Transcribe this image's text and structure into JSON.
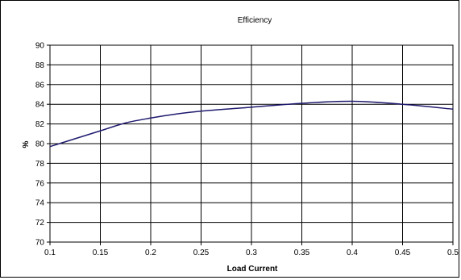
{
  "chart_data": {
    "type": "line",
    "title": "Efficiency",
    "xlabel": "Load Current",
    "ylabel": "%",
    "xlim": [
      0.1,
      0.5
    ],
    "ylim": [
      70,
      90
    ],
    "x_ticks": [
      "0.1",
      "0.15",
      "0.2",
      "0.25",
      "0.3",
      "0.35",
      "0.4",
      "0.45",
      "0.5"
    ],
    "y_ticks": [
      "90",
      "88",
      "86",
      "84",
      "82",
      "80",
      "78",
      "76",
      "74",
      "72",
      "70"
    ],
    "grid": true,
    "legend": "none",
    "line_color": "#1f1a6e",
    "series": [
      {
        "x": [
          0.1,
          0.125,
          0.15,
          0.175,
          0.2,
          0.225,
          0.25,
          0.3,
          0.35,
          0.4,
          0.45,
          0.5
        ],
        "values": [
          79.7,
          80.5,
          81.3,
          82.1,
          82.6,
          83.0,
          83.3,
          83.7,
          84.1,
          84.3,
          84.0,
          83.5
        ]
      }
    ]
  }
}
